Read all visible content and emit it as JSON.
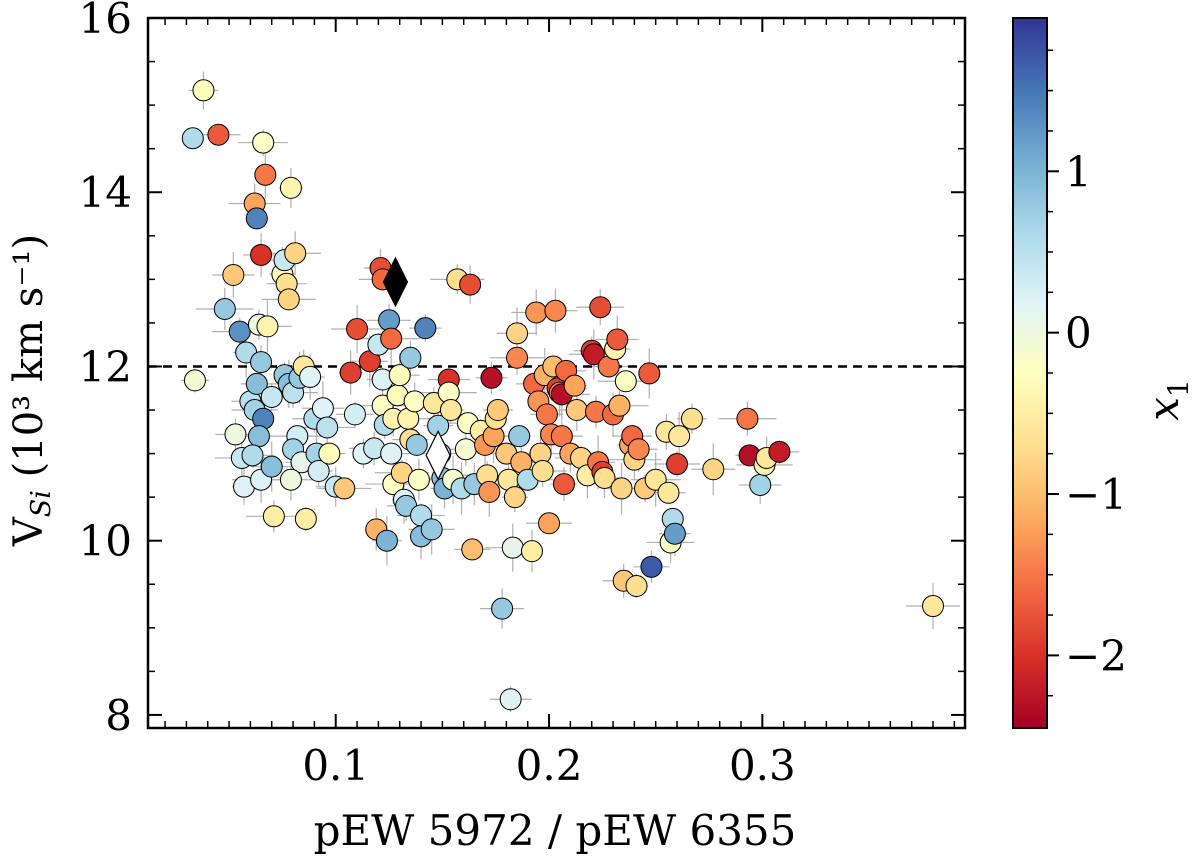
{
  "chart_data": {
    "type": "scatter",
    "xlabel": "pEW 5972 / pEW 6355",
    "ylabel": {
      "main": "V",
      "sub": "Si",
      "unit": " (10³ km s⁻¹)"
    },
    "xlim": [
      0.012,
      0.395
    ],
    "ylim": [
      7.85,
      16.0
    ],
    "xticks": [
      0.1,
      0.2,
      0.3
    ],
    "xtick_labels": [
      "0.1",
      "0.2",
      "0.3"
    ],
    "yticks": [
      8,
      10,
      12,
      14,
      16
    ],
    "ytick_labels": [
      "8",
      "10",
      "12",
      "14",
      "16"
    ],
    "reference_line": {
      "y": 12.0,
      "style": "dashed"
    },
    "colorbar": {
      "label": "x",
      "label_sub": "1",
      "range": [
        -2.45,
        1.95
      ],
      "ticks": [
        1,
        0,
        -1,
        -2
      ],
      "tick_labels": [
        "1",
        "0",
        "−1",
        "−2"
      ],
      "colormap": [
        "#a50026",
        "#d73027",
        "#f46d43",
        "#fdae61",
        "#fee090",
        "#ffffbf",
        "#e0f3f8",
        "#abd9e9",
        "#74add1",
        "#4575b4",
        "#313695"
      ]
    },
    "special_points": [
      {
        "x": 0.128,
        "y": 12.97,
        "marker": "diamond",
        "color": "#000000"
      },
      {
        "x": 0.148,
        "y": 10.98,
        "marker": "diamond",
        "color": "#ffffff"
      }
    ],
    "grid": false,
    "points": [
      [
        0.033,
        14.62,
        0.6
      ],
      [
        0.038,
        15.17,
        -0.3
      ],
      [
        0.045,
        14.66,
        -1.7
      ],
      [
        0.048,
        12.66,
        0.8
      ],
      [
        0.034,
        11.84,
        -0.1
      ],
      [
        0.052,
        13.05,
        -0.9
      ],
      [
        0.055,
        12.4,
        1.3
      ],
      [
        0.058,
        12.16,
        0.6
      ],
      [
        0.053,
        11.22,
        0.0
      ],
      [
        0.056,
        10.95,
        0.4
      ],
      [
        0.057,
        10.62,
        0.2
      ],
      [
        0.06,
        11.6,
        0.5
      ],
      [
        0.062,
        13.87,
        -1.2
      ],
      [
        0.063,
        13.7,
        1.4
      ],
      [
        0.065,
        13.28,
        -2.0
      ],
      [
        0.066,
        14.57,
        -0.2
      ],
      [
        0.067,
        14.2,
        -1.5
      ],
      [
        0.064,
        12.48,
        0.0
      ],
      [
        0.068,
        12.46,
        -0.4
      ],
      [
        0.065,
        12.05,
        0.8
      ],
      [
        0.063,
        11.8,
        0.9
      ],
      [
        0.062,
        11.5,
        0.7
      ],
      [
        0.066,
        11.4,
        1.4
      ],
      [
        0.064,
        11.2,
        0.9
      ],
      [
        0.061,
        10.98,
        0.6
      ],
      [
        0.065,
        10.7,
        0.2
      ],
      [
        0.07,
        11.65,
        0.4
      ],
      [
        0.07,
        10.85,
        0.9
      ],
      [
        0.071,
        10.28,
        -0.5
      ],
      [
        0.075,
        13.06,
        -0.2
      ],
      [
        0.077,
        12.95,
        -0.7
      ],
      [
        0.078,
        12.77,
        -0.8
      ],
      [
        0.079,
        14.05,
        -0.4
      ],
      [
        0.076,
        13.22,
        0.4
      ],
      [
        0.081,
        13.3,
        -0.8
      ],
      [
        0.076,
        11.9,
        0.8
      ],
      [
        0.078,
        11.8,
        0.9
      ],
      [
        0.08,
        11.7,
        0.5
      ],
      [
        0.083,
        11.87,
        0.8
      ],
      [
        0.085,
        12.0,
        -0.6
      ],
      [
        0.082,
        11.2,
        0.3
      ],
      [
        0.08,
        11.05,
        0.7
      ],
      [
        0.084,
        10.9,
        0.1
      ],
      [
        0.079,
        10.7,
        0.0
      ],
      [
        0.086,
        10.25,
        -0.5
      ],
      [
        0.088,
        11.88,
        0.2
      ],
      [
        0.09,
        11.4,
        0.6
      ],
      [
        0.091,
        11.0,
        0.7
      ],
      [
        0.092,
        10.8,
        0.3
      ],
      [
        0.094,
        11.52,
        0.2
      ],
      [
        0.096,
        11.3,
        0.5
      ],
      [
        0.097,
        11.0,
        -0.3
      ],
      [
        0.1,
        10.62,
        0.4
      ],
      [
        0.104,
        10.6,
        -0.9
      ],
      [
        0.107,
        11.93,
        -1.9
      ],
      [
        0.109,
        11.45,
        0.3
      ],
      [
        0.11,
        12.43,
        -1.8
      ],
      [
        0.113,
        11.0,
        0.2
      ],
      [
        0.116,
        12.06,
        -1.9
      ],
      [
        0.118,
        11.06,
        0.4
      ],
      [
        0.12,
        12.25,
        0.4
      ],
      [
        0.121,
        13.13,
        -1.8
      ],
      [
        0.122,
        13.0,
        -1.6
      ],
      [
        0.119,
        10.13,
        -1.1
      ],
      [
        0.122,
        11.85,
        0.2
      ],
      [
        0.122,
        11.55,
        -0.2
      ],
      [
        0.123,
        11.33,
        0.6
      ],
      [
        0.124,
        10.0,
        1.0
      ],
      [
        0.125,
        12.53,
        1.2
      ],
      [
        0.126,
        12.32,
        -1.6
      ],
      [
        0.127,
        11.4,
        -0.4
      ],
      [
        0.126,
        11.0,
        0.2
      ],
      [
        0.127,
        10.65,
        -0.2
      ],
      [
        0.129,
        11.67,
        -0.3
      ],
      [
        0.13,
        11.9,
        -0.3
      ],
      [
        0.131,
        10.78,
        -0.8
      ],
      [
        0.132,
        10.47,
        0.2
      ],
      [
        0.133,
        10.4,
        0.8
      ],
      [
        0.134,
        11.4,
        -0.4
      ],
      [
        0.135,
        12.1,
        0.8
      ],
      [
        0.135,
        11.16,
        -0.7
      ],
      [
        0.137,
        11.6,
        -0.2
      ],
      [
        0.138,
        11.1,
        0.8
      ],
      [
        0.139,
        10.7,
        -0.2
      ],
      [
        0.14,
        10.29,
        0.6
      ],
      [
        0.14,
        10.05,
        0.9
      ],
      [
        0.142,
        12.44,
        1.4
      ],
      [
        0.145,
        10.13,
        0.8
      ],
      [
        0.146,
        11.58,
        -0.6
      ],
      [
        0.148,
        11.32,
        0.7
      ],
      [
        0.149,
        11.0,
        0.6
      ],
      [
        0.15,
        10.72,
        0.9
      ],
      [
        0.151,
        10.6,
        1.0
      ],
      [
        0.153,
        11.85,
        -2.0
      ],
      [
        0.153,
        11.7,
        -0.2
      ],
      [
        0.154,
        11.5,
        -0.6
      ],
      [
        0.155,
        10.7,
        -0.1
      ],
      [
        0.157,
        13.0,
        -0.7
      ],
      [
        0.159,
        10.6,
        0.6
      ],
      [
        0.161,
        11.05,
        -0.1
      ],
      [
        0.162,
        11.35,
        -0.2
      ],
      [
        0.163,
        12.94,
        -1.8
      ],
      [
        0.164,
        9.9,
        -1.0
      ],
      [
        0.165,
        10.65,
        0.8
      ],
      [
        0.168,
        11.26,
        -0.5
      ],
      [
        0.17,
        11.1,
        -1.3
      ],
      [
        0.171,
        10.75,
        -0.7
      ],
      [
        0.172,
        10.56,
        -1.3
      ],
      [
        0.173,
        11.87,
        -2.3
      ],
      [
        0.174,
        11.2,
        -1.2
      ],
      [
        0.175,
        11.4,
        -0.7
      ],
      [
        0.176,
        11.5,
        -0.9
      ],
      [
        0.178,
        9.22,
        0.8
      ],
      [
        0.18,
        11.0,
        -0.9
      ],
      [
        0.181,
        10.7,
        -0.6
      ],
      [
        0.182,
        8.18,
        0.2
      ],
      [
        0.183,
        9.92,
        0.1
      ],
      [
        0.184,
        10.5,
        -0.8
      ],
      [
        0.185,
        12.38,
        -0.8
      ],
      [
        0.185,
        12.1,
        -1.4
      ],
      [
        0.186,
        11.2,
        0.8
      ],
      [
        0.187,
        10.9,
        -1.1
      ],
      [
        0.19,
        10.7,
        0.6
      ],
      [
        0.192,
        9.88,
        -0.5
      ],
      [
        0.193,
        11.8,
        -1.6
      ],
      [
        0.194,
        12.62,
        -1.3
      ],
      [
        0.195,
        11.6,
        -1.3
      ],
      [
        0.196,
        11.0,
        -0.8
      ],
      [
        0.197,
        10.8,
        -0.7
      ],
      [
        0.198,
        11.9,
        -1.1
      ],
      [
        0.199,
        11.45,
        -1.5
      ],
      [
        0.2,
        10.2,
        -1.2
      ],
      [
        0.201,
        11.22,
        -1.4
      ],
      [
        0.202,
        12.0,
        -1.0
      ],
      [
        0.203,
        12.64,
        -1.4
      ],
      [
        0.204,
        11.75,
        -1.9
      ],
      [
        0.205,
        11.7,
        -1.4
      ],
      [
        0.206,
        11.2,
        -1.5
      ],
      [
        0.206,
        11.68,
        -2.3
      ],
      [
        0.207,
        10.65,
        -1.7
      ],
      [
        0.208,
        11.95,
        -1.6
      ],
      [
        0.21,
        11.0,
        -1.2
      ],
      [
        0.212,
        11.78,
        -1.2
      ],
      [
        0.213,
        11.5,
        -0.9
      ],
      [
        0.215,
        10.95,
        -0.8
      ],
      [
        0.218,
        10.75,
        -0.5
      ],
      [
        0.22,
        12.18,
        -1.9
      ],
      [
        0.221,
        12.14,
        -2.2
      ],
      [
        0.222,
        11.48,
        -1.5
      ],
      [
        0.223,
        10.9,
        -1.5
      ],
      [
        0.224,
        12.68,
        -1.8
      ],
      [
        0.225,
        10.79,
        -1.9
      ],
      [
        0.226,
        10.72,
        -0.7
      ],
      [
        0.228,
        12.0,
        -1.5
      ],
      [
        0.23,
        11.45,
        -1.6
      ],
      [
        0.231,
        12.2,
        -0.4
      ],
      [
        0.232,
        12.31,
        -1.7
      ],
      [
        0.233,
        11.55,
        -1.1
      ],
      [
        0.234,
        10.6,
        -0.8
      ],
      [
        0.235,
        9.54,
        -0.9
      ],
      [
        0.236,
        11.83,
        -0.2
      ],
      [
        0.238,
        11.1,
        -1.2
      ],
      [
        0.239,
        11.2,
        -1.6
      ],
      [
        0.24,
        10.93,
        -0.8
      ],
      [
        0.241,
        9.48,
        -0.7
      ],
      [
        0.242,
        11.05,
        -1.4
      ],
      [
        0.245,
        10.6,
        -0.9
      ],
      [
        0.247,
        11.92,
        -1.7
      ],
      [
        0.248,
        9.7,
        1.7
      ],
      [
        0.25,
        10.7,
        -0.6
      ],
      [
        0.255,
        11.25,
        -0.6
      ],
      [
        0.256,
        10.55,
        -0.6
      ],
      [
        0.257,
        9.98,
        -0.2
      ],
      [
        0.258,
        10.25,
        0.6
      ],
      [
        0.259,
        10.08,
        1.2
      ],
      [
        0.26,
        10.88,
        -1.9
      ],
      [
        0.261,
        11.2,
        -0.6
      ],
      [
        0.267,
        11.4,
        -0.7
      ],
      [
        0.277,
        10.82,
        -0.8
      ],
      [
        0.293,
        11.4,
        -1.5
      ],
      [
        0.294,
        10.98,
        -2.3
      ],
      [
        0.299,
        10.64,
        0.7
      ],
      [
        0.301,
        10.87,
        -0.4
      ],
      [
        0.302,
        10.95,
        -0.6
      ],
      [
        0.308,
        11.02,
        -2.2
      ],
      [
        0.38,
        9.25,
        -0.6
      ]
    ]
  }
}
